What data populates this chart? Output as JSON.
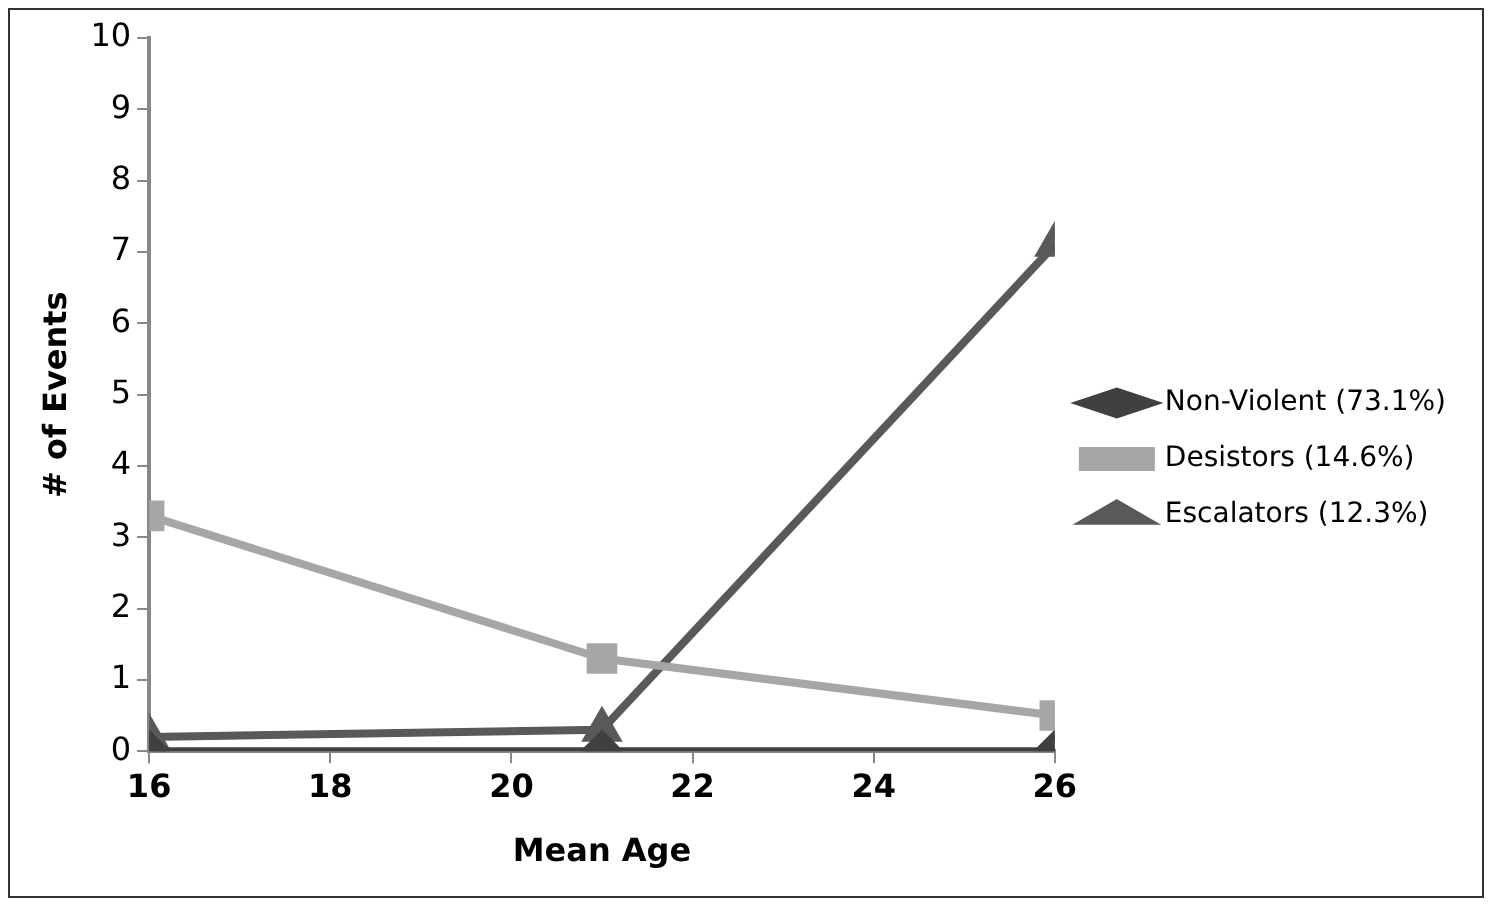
{
  "chart_data": {
    "type": "line",
    "xlabel": "Mean Age",
    "ylabel": "# of Events",
    "x": [
      16,
      21,
      26
    ],
    "series": [
      {
        "name": "Non-Violent (73.1%)",
        "color": "#404040",
        "values": [
          0,
          0,
          0
        ],
        "marker": "diamond"
      },
      {
        "name": "Desistors (14.6%)",
        "color": "#a6a6a6",
        "values": [
          3.3,
          1.3,
          0.5
        ],
        "marker": "square"
      },
      {
        "name": "Escalators (12.3%)",
        "color": "#595959",
        "values": [
          0.2,
          0.3,
          7.1
        ],
        "marker": "triangle"
      }
    ],
    "xlim": [
      16,
      26
    ],
    "xticks": [
      16,
      18,
      20,
      22,
      24,
      26
    ],
    "ylim": [
      0,
      10
    ],
    "yticks": [
      0,
      1,
      2,
      3,
      4,
      5,
      6,
      7,
      8,
      9,
      10
    ],
    "grid": false,
    "legend": "right",
    "line_style": "solid"
  }
}
